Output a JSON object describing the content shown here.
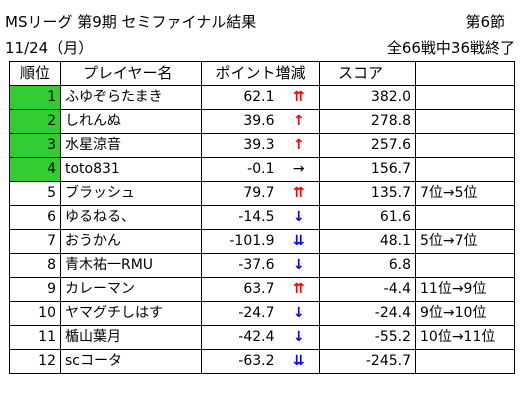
{
  "header": {
    "title": "MSリーグ 第9期 セミファイナル結果",
    "round": "第6節",
    "date": "11/24（月）",
    "progress": "全66戦中36戦終了"
  },
  "columns": {
    "rank": "順位",
    "player": "プレイヤー名",
    "points": "ポイント増減",
    "score": "スコア",
    "note": ""
  },
  "colors": {
    "highlight": "#33cc33",
    "up_arrow": "#ff0000",
    "down_arrow": "#0000ff"
  },
  "rows": [
    {
      "rank": "1",
      "name": "ふゆぞらたまき",
      "points": "62.1",
      "arrow": "⇈",
      "trend": "up",
      "score": "382.0",
      "note": "",
      "highlight": true
    },
    {
      "rank": "2",
      "name": "しれんぬ",
      "points": "39.6",
      "arrow": "↑",
      "trend": "up",
      "score": "278.8",
      "note": "",
      "highlight": true
    },
    {
      "rank": "3",
      "name": "水星涼音",
      "points": "39.3",
      "arrow": "↑",
      "trend": "up",
      "score": "257.6",
      "note": "",
      "highlight": true
    },
    {
      "rank": "4",
      "name": "toto831",
      "points": "-0.1",
      "arrow": "→",
      "trend": "same",
      "score": "156.7",
      "note": "",
      "highlight": true
    },
    {
      "rank": "5",
      "name": "ブラッシュ",
      "points": "79.7",
      "arrow": "⇈",
      "trend": "up",
      "score": "135.7",
      "note": "7位→5位",
      "highlight": false
    },
    {
      "rank": "6",
      "name": "ゆるねる、",
      "points": "-14.5",
      "arrow": "↓",
      "trend": "down",
      "score": "61.6",
      "note": "",
      "highlight": false
    },
    {
      "rank": "7",
      "name": "おうかん",
      "points": "-101.9",
      "arrow": "⇊",
      "trend": "down",
      "score": "48.1",
      "note": "5位→7位",
      "highlight": false
    },
    {
      "rank": "8",
      "name": "青木祐一RMU",
      "points": "-37.6",
      "arrow": "↓",
      "trend": "down",
      "score": "6.8",
      "note": "",
      "highlight": false
    },
    {
      "rank": "9",
      "name": "カレーマン",
      "points": "63.7",
      "arrow": "⇈",
      "trend": "up",
      "score": "-4.4",
      "note": "11位→9位",
      "highlight": false
    },
    {
      "rank": "10",
      "name": "ヤマグチしはす",
      "points": "-24.7",
      "arrow": "↓",
      "trend": "down",
      "score": "-24.4",
      "note": "9位→10位",
      "highlight": false
    },
    {
      "rank": "11",
      "name": "楯山葉月",
      "points": "-42.4",
      "arrow": "↓",
      "trend": "down",
      "score": "-55.2",
      "note": "10位→11位",
      "highlight": false
    },
    {
      "rank": "12",
      "name": "scコータ",
      "points": "-63.2",
      "arrow": "⇊",
      "trend": "down",
      "score": "-245.7",
      "note": "",
      "highlight": false
    }
  ]
}
